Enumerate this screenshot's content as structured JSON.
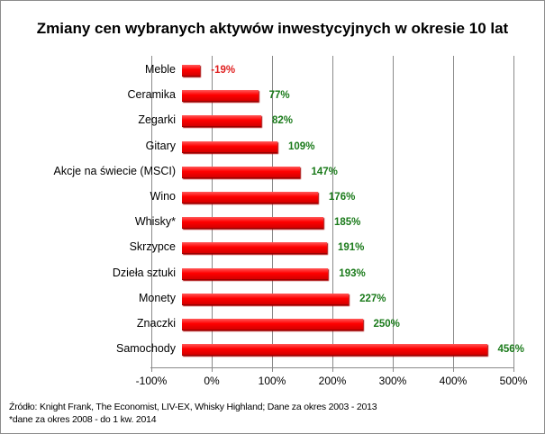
{
  "chart_data": {
    "type": "bar",
    "orientation": "horizontal",
    "title": "Zmiany cen wybranych aktywów inwestycyjnych w okresie 10 lat",
    "categories": [
      "Meble",
      "Ceramika",
      "Zegarki",
      "Gitary",
      "Akcje na świecie (MSCI)",
      "Wino",
      "Whisky*",
      "Skrzypce",
      "Dzieła sztuki",
      "Monety",
      "Znaczki",
      "Samochody"
    ],
    "values": [
      -19,
      77,
      82,
      109,
      147,
      176,
      185,
      191,
      193,
      227,
      250,
      456
    ],
    "value_labels": [
      "-19%",
      "77%",
      "82%",
      "109%",
      "147%",
      "176%",
      "185%",
      "191%",
      "193%",
      "227%",
      "250%",
      "456%"
    ],
    "x_ticks": [
      "-100%",
      "0%",
      "100%",
      "200%",
      "300%",
      "400%",
      "500%"
    ],
    "xlim": [
      -100,
      500
    ],
    "xlabel": "",
    "ylabel": "",
    "grid": true,
    "legend": null,
    "colors": {
      "bar": "#ff0000",
      "positive_label": "#1a7a1a",
      "negative_label": "#e02020"
    }
  },
  "footnotes": {
    "source": "Źródło: Knight Frank, The Economist, LIV-EX, Whisky Highland; Dane za okres 2003 - 2013",
    "note": "*dane za okres 2008 - do 1 kw. 2014"
  }
}
